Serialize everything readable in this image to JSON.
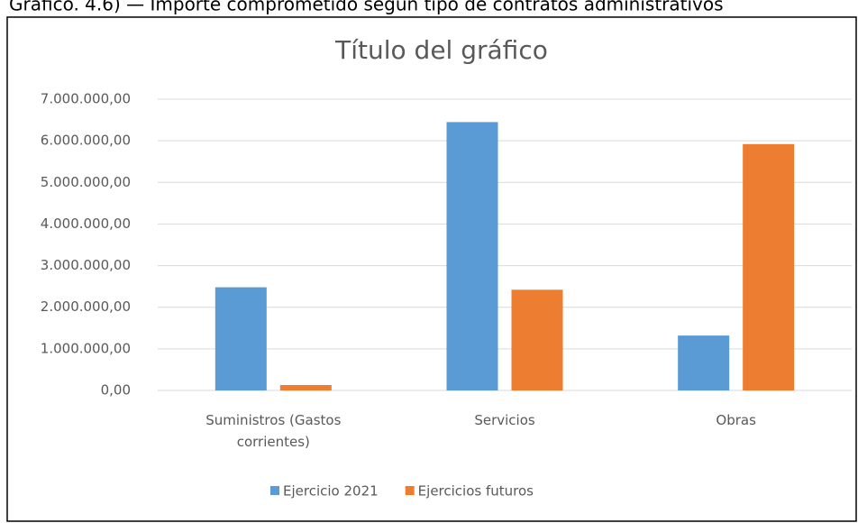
{
  "caption": "Gráfico. 4.6) — Importe comprometido según tipo de contratos administrativos",
  "chart_data": {
    "type": "bar",
    "title": "Título del gráfico",
    "categories": [
      "Suministros (Gastos corrientes)",
      "Servicios",
      "Obras"
    ],
    "series": [
      {
        "name": "Ejercicio 2021",
        "color": "#5b9bd5",
        "values": [
          2480000,
          6450000,
          1320000
        ]
      },
      {
        "name": "Ejercicios futuros",
        "color": "#ed7d31",
        "values": [
          130000,
          2420000,
          5920000
        ]
      }
    ],
    "ylim": [
      0,
      7000000
    ],
    "yticks": [
      {
        "value": 0,
        "label": "0,00"
      },
      {
        "value": 1000000,
        "label": "1.000.000,00"
      },
      {
        "value": 2000000,
        "label": "2.000.000,00"
      },
      {
        "value": 3000000,
        "label": "3.000.000,00"
      },
      {
        "value": 4000000,
        "label": "4.000.000,00"
      },
      {
        "value": 5000000,
        "label": "5.000.000,00"
      },
      {
        "value": 6000000,
        "label": "6.000.000,00"
      },
      {
        "value": 7000000,
        "label": "7.000.000,00"
      }
    ],
    "grid": true,
    "legend": "bottom"
  }
}
